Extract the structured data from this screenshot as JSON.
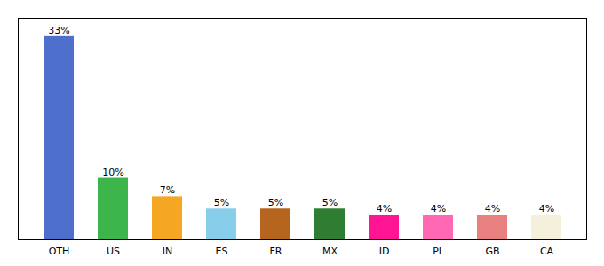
{
  "chart_data": {
    "type": "bar",
    "categories": [
      "OTH",
      "US",
      "IN",
      "ES",
      "FR",
      "MX",
      "ID",
      "PL",
      "GB",
      "CA"
    ],
    "values": [
      33,
      10,
      7,
      5,
      5,
      5,
      4,
      4,
      4,
      4
    ],
    "value_labels": [
      "33%",
      "10%",
      "7%",
      "5%",
      "5%",
      "5%",
      "4%",
      "4%",
      "4%",
      "4%"
    ],
    "colors": [
      "#4f6fcd",
      "#3cb64a",
      "#f5a623",
      "#87ceeb",
      "#b5651d",
      "#2e7d32",
      "#ff1493",
      "#ff69b4",
      "#e88080",
      "#f5f0dc"
    ],
    "ylim": [
      0,
      36
    ],
    "yticks": [],
    "tick_labels": "x",
    "data_labels": true,
    "grid": false
  }
}
